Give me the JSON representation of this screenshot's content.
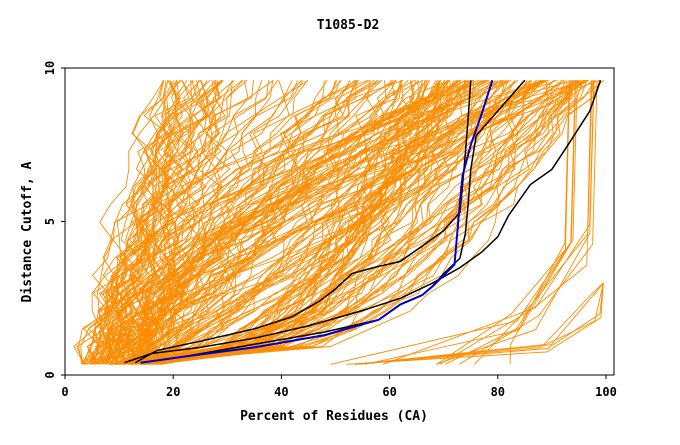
{
  "chart_data": {
    "type": "line",
    "title": "T1085-D2",
    "xlabel": "Percent of Residues (CA)",
    "ylabel": "Distance Cutoff, A",
    "xlim": [
      0,
      100
    ],
    "ylim": [
      0,
      10
    ],
    "x_ticks": [
      "0",
      "20",
      "40",
      "60",
      "80",
      "100"
    ],
    "y_ticks": [
      "0",
      "5",
      "10"
    ],
    "grid": false,
    "legend": "none",
    "colors": {
      "models": "#ff8c00",
      "highlight_black": "#000000",
      "highlight_blue": "#0000cc"
    },
    "highlighted_series": [
      {
        "color": "black",
        "points": [
          [
            13,
            0.4
          ],
          [
            17,
            0.8
          ],
          [
            25,
            1.1
          ],
          [
            35,
            1.5
          ],
          [
            42,
            1.9
          ],
          [
            47,
            2.4
          ],
          [
            50,
            2.8
          ],
          [
            53,
            3.3
          ],
          [
            57,
            3.5
          ],
          [
            62,
            3.7
          ],
          [
            66,
            4.2
          ],
          [
            70,
            4.7
          ],
          [
            73,
            5.3
          ],
          [
            73.5,
            6.2
          ],
          [
            74,
            7.2
          ],
          [
            74.5,
            8.3
          ],
          [
            75,
            9.6
          ]
        ]
      },
      {
        "color": "black",
        "points": [
          [
            11,
            0.4
          ],
          [
            16,
            0.7
          ],
          [
            25,
            0.9
          ],
          [
            35,
            1.2
          ],
          [
            45,
            1.6
          ],
          [
            55,
            2.1
          ],
          [
            62,
            2.5
          ],
          [
            68,
            3.0
          ],
          [
            73,
            3.5
          ],
          [
            77,
            4.0
          ],
          [
            80,
            4.5
          ],
          [
            82,
            5.2
          ],
          [
            86,
            6.2
          ],
          [
            90,
            6.7
          ],
          [
            93,
            7.5
          ],
          [
            97,
            8.6
          ],
          [
            99,
            9.6
          ]
        ]
      },
      {
        "color": "black",
        "points": [
          [
            14,
            0.4
          ],
          [
            22,
            0.6
          ],
          [
            35,
            1.0
          ],
          [
            48,
            1.4
          ],
          [
            58,
            1.8
          ],
          [
            62,
            2.3
          ],
          [
            66,
            2.6
          ],
          [
            68,
            2.9
          ],
          [
            70,
            3.3
          ],
          [
            73,
            3.8
          ],
          [
            74,
            4.6
          ],
          [
            74.5,
            5.5
          ],
          [
            75,
            6.7
          ],
          [
            76,
            7.8
          ],
          [
            80,
            8.6
          ],
          [
            85,
            9.6
          ]
        ]
      },
      {
        "color": "blue",
        "points": [
          [
            14,
            0.4
          ],
          [
            22,
            0.6
          ],
          [
            35,
            0.9
          ],
          [
            48,
            1.3
          ],
          [
            58,
            1.8
          ],
          [
            62,
            2.3
          ],
          [
            66,
            2.6
          ],
          [
            68,
            2.9
          ],
          [
            72,
            3.6
          ],
          [
            72.5,
            4.6
          ],
          [
            73,
            5.6
          ],
          [
            73.5,
            6.5
          ],
          [
            75,
            7.5
          ],
          [
            77,
            8.5
          ],
          [
            79,
            9.6
          ]
        ]
      }
    ]
  }
}
